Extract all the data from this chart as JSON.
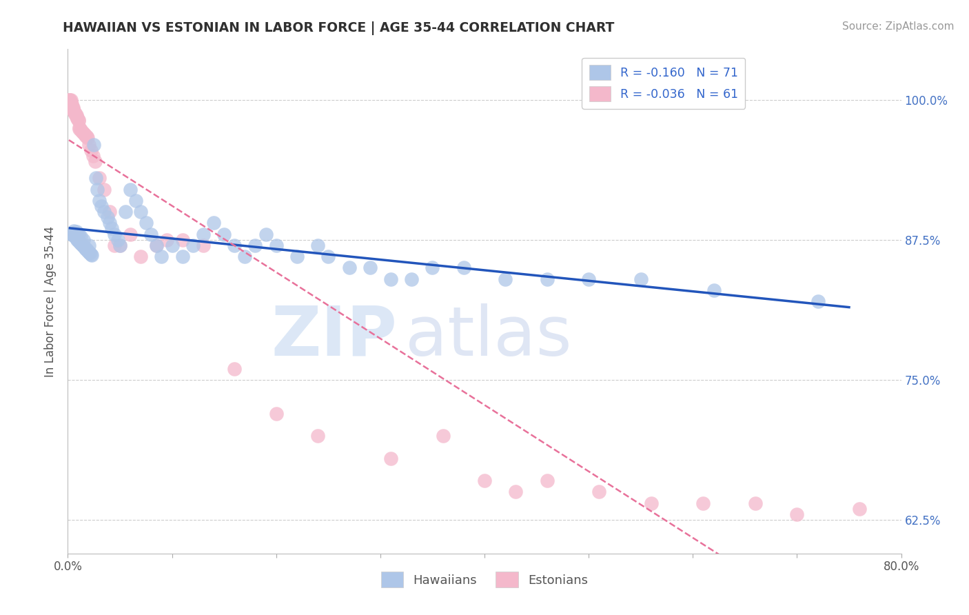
{
  "title": "HAWAIIAN VS ESTONIAN IN LABOR FORCE | AGE 35-44 CORRELATION CHART",
  "source": "Source: ZipAtlas.com",
  "ylabel": "In Labor Force | Age 35-44",
  "xlim": [
    0.0,
    0.8
  ],
  "ylim": [
    0.595,
    1.045
  ],
  "yticks": [
    0.625,
    0.75,
    0.875,
    1.0
  ],
  "ytick_labels": [
    "62.5%",
    "75.0%",
    "87.5%",
    "100.0%"
  ],
  "hawaiian_color": "#aec6e8",
  "estonian_color": "#f4b8cb",
  "hawaiian_edge_color": "#7aadd4",
  "estonian_edge_color": "#e8859a",
  "hawaiian_line_color": "#2255bb",
  "estonian_line_color": "#e8719a",
  "title_color": "#404040",
  "source_color": "#999999",
  "hawaiian_R": -0.16,
  "hawaiian_N": 71,
  "estonian_R": -0.036,
  "estonian_N": 61,
  "watermark1": "ZIP",
  "watermark2": "atlas",
  "hawaiian_x": [
    0.004,
    0.005,
    0.006,
    0.007,
    0.008,
    0.008,
    0.009,
    0.01,
    0.01,
    0.011,
    0.012,
    0.012,
    0.013,
    0.014,
    0.015,
    0.015,
    0.016,
    0.017,
    0.018,
    0.019,
    0.02,
    0.02,
    0.021,
    0.022,
    0.023,
    0.025,
    0.027,
    0.028,
    0.03,
    0.032,
    0.035,
    0.038,
    0.04,
    0.042,
    0.045,
    0.048,
    0.05,
    0.055,
    0.06,
    0.065,
    0.07,
    0.075,
    0.08,
    0.085,
    0.09,
    0.1,
    0.11,
    0.12,
    0.13,
    0.14,
    0.15,
    0.16,
    0.17,
    0.18,
    0.19,
    0.2,
    0.22,
    0.24,
    0.25,
    0.27,
    0.29,
    0.31,
    0.33,
    0.35,
    0.38,
    0.42,
    0.46,
    0.5,
    0.55,
    0.62,
    0.72
  ],
  "hawaiian_y": [
    0.88,
    0.879,
    0.883,
    0.878,
    0.876,
    0.882,
    0.875,
    0.874,
    0.88,
    0.873,
    0.872,
    0.878,
    0.871,
    0.87,
    0.869,
    0.875,
    0.868,
    0.867,
    0.866,
    0.865,
    0.864,
    0.87,
    0.863,
    0.862,
    0.861,
    0.96,
    0.93,
    0.92,
    0.91,
    0.905,
    0.9,
    0.895,
    0.89,
    0.885,
    0.88,
    0.875,
    0.87,
    0.9,
    0.92,
    0.91,
    0.9,
    0.89,
    0.88,
    0.87,
    0.86,
    0.87,
    0.86,
    0.87,
    0.88,
    0.89,
    0.88,
    0.87,
    0.86,
    0.87,
    0.88,
    0.87,
    0.86,
    0.87,
    0.86,
    0.85,
    0.85,
    0.84,
    0.84,
    0.85,
    0.85,
    0.84,
    0.84,
    0.84,
    0.84,
    0.83,
    0.82
  ],
  "estonian_x": [
    0.001,
    0.002,
    0.002,
    0.003,
    0.003,
    0.003,
    0.004,
    0.004,
    0.004,
    0.005,
    0.005,
    0.005,
    0.006,
    0.006,
    0.007,
    0.007,
    0.008,
    0.008,
    0.009,
    0.009,
    0.01,
    0.01,
    0.011,
    0.011,
    0.012,
    0.013,
    0.014,
    0.015,
    0.016,
    0.017,
    0.018,
    0.019,
    0.02,
    0.022,
    0.024,
    0.026,
    0.03,
    0.035,
    0.04,
    0.045,
    0.05,
    0.06,
    0.07,
    0.085,
    0.095,
    0.11,
    0.13,
    0.16,
    0.2,
    0.24,
    0.31,
    0.36,
    0.4,
    0.43,
    0.46,
    0.51,
    0.56,
    0.61,
    0.66,
    0.7,
    0.76
  ],
  "estonian_y": [
    1.0,
    1.0,
    1.0,
    0.998,
    0.997,
    1.0,
    0.996,
    0.995,
    0.994,
    0.993,
    0.992,
    0.991,
    0.99,
    0.989,
    0.988,
    0.987,
    0.986,
    0.985,
    0.984,
    0.983,
    0.982,
    0.981,
    0.975,
    0.974,
    0.973,
    0.972,
    0.971,
    0.97,
    0.969,
    0.968,
    0.967,
    0.966,
    0.96,
    0.955,
    0.95,
    0.945,
    0.93,
    0.92,
    0.9,
    0.87,
    0.87,
    0.88,
    0.86,
    0.87,
    0.875,
    0.875,
    0.87,
    0.76,
    0.72,
    0.7,
    0.68,
    0.7,
    0.66,
    0.65,
    0.66,
    0.65,
    0.64,
    0.64,
    0.64,
    0.63,
    0.635
  ]
}
